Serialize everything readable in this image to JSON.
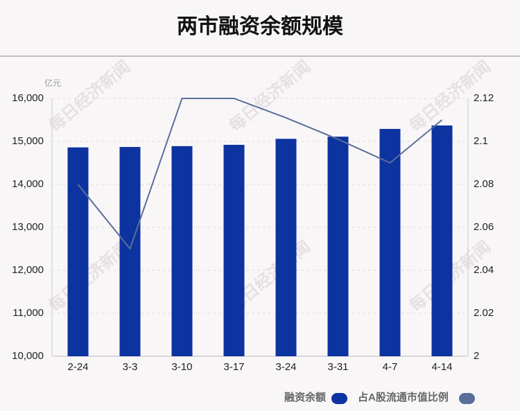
{
  "chart_data": {
    "type": "bar-line",
    "title": "两市融资余额规模",
    "y_unit": "亿元",
    "watermark": "每日经济新闻",
    "categories": [
      "2-24",
      "3-3",
      "3-10",
      "3-17",
      "3-24",
      "3-31",
      "4-7",
      "4-14"
    ],
    "series": [
      {
        "name": "融资余额",
        "type": "bar",
        "color": "#0d33a0",
        "values": [
          14860,
          14870,
          14890,
          14920,
          15060,
          15110,
          15290,
          15370
        ]
      },
      {
        "name": "占A股流通市值比例",
        "type": "line",
        "axis": "y2",
        "color": "#5a6e9a",
        "values": [
          2.08,
          2.05,
          2.12,
          2.12,
          2.111,
          2.101,
          2.09,
          2.11
        ]
      }
    ],
    "ylim": [
      10000,
      16000
    ],
    "yticks": [
      {
        "value": 10000,
        "label": "10,000"
      },
      {
        "value": 11000,
        "label": "11,000"
      },
      {
        "value": 12000,
        "label": "12,000"
      },
      {
        "value": 13000,
        "label": "13,000"
      },
      {
        "value": 14000,
        "label": "14,000"
      },
      {
        "value": 15000,
        "label": "15,000"
      },
      {
        "value": 16000,
        "label": "16,000"
      }
    ],
    "y2lim": [
      2,
      2.12
    ],
    "y2ticks": [
      2,
      2.02,
      2.04,
      2.06,
      2.08,
      2.1,
      2.12
    ],
    "grid": true
  }
}
